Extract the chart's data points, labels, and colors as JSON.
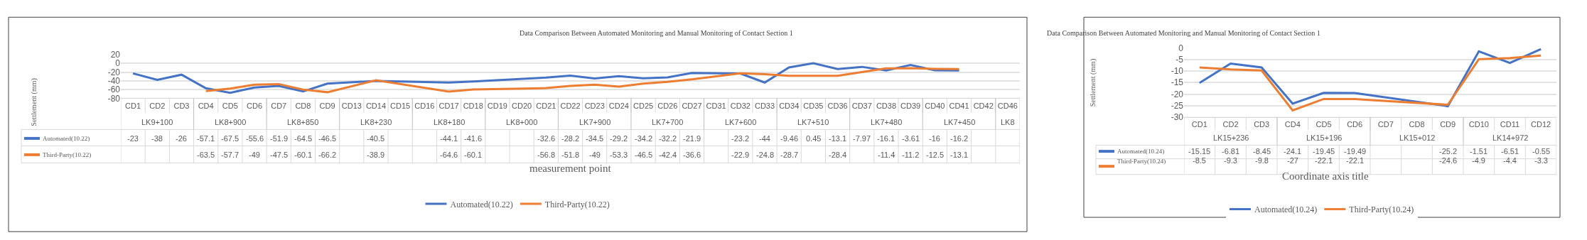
{
  "chart_data": [
    {
      "type": "line",
      "title": "Data Comparison Between Automated Monitoring and Manual Monitoring of Contact Section 1",
      "xlabel": "measurement point",
      "ylabel": "Settlement (mm)",
      "categories": [
        "CD1",
        "CD2",
        "CD3",
        "CD4",
        "CD5",
        "CD6",
        "CD7",
        "CD8",
        "CD9",
        "CD13",
        "CD14",
        "CD15",
        "CD16",
        "CD17",
        "CD18",
        "CD19",
        "CD20",
        "CD21",
        "CD22",
        "CD23",
        "CD24",
        "CD25",
        "CD26",
        "CD27",
        "CD31",
        "CD32",
        "CD33",
        "CD34",
        "CD35",
        "CD36",
        "CD37",
        "CD38",
        "CD39",
        "CD40",
        "CD41",
        "CD42",
        "CD46"
      ],
      "series": [
        {
          "name": "Automated(10.22)",
          "color": "#4472c4",
          "values": [
            -23,
            -38,
            -26,
            -57.1,
            -67.5,
            -55.6,
            -51.9,
            -64.5,
            -46.5,
            null,
            -40.5,
            null,
            null,
            -44.1,
            -41.6,
            null,
            null,
            -32.6,
            -28.2,
            -34.5,
            -29.2,
            -34.2,
            -32.2,
            -21.9,
            null,
            -23.2,
            -44,
            -9.46,
            0.45,
            -13.1,
            -7.97,
            -16.1,
            -3.61,
            -16,
            -16.2,
            null,
            null
          ]
        },
        {
          "name": "Third-Party(10.22)",
          "color": "#ed7d31",
          "values": [
            null,
            null,
            null,
            -63.5,
            -57.7,
            -49,
            -47.5,
            -60.1,
            -66.2,
            null,
            -38.9,
            null,
            null,
            -64.6,
            -60.1,
            null,
            null,
            -56.8,
            -51.8,
            -49,
            -53.3,
            -46.5,
            -42.4,
            -36.6,
            null,
            -22.9,
            -24.8,
            -28.7,
            null,
            -28.4,
            null,
            -11.4,
            -11.2,
            -12.5,
            -13.1,
            null,
            null
          ]
        }
      ],
      "annotations": [
        "LK9+100",
        "LK8+900",
        "LK8+850",
        "LK8+230",
        "LK8+180",
        "LK8+000",
        "LK7+900",
        "LK7+700",
        "LK7+600",
        "LK7+510",
        "LK7+480",
        "LK7+450",
        "LK8"
      ],
      "ylim": [
        -80,
        20
      ],
      "yticks": [
        20,
        0,
        -20,
        -40,
        -60,
        -80
      ],
      "grid": "y",
      "legend": "bottom",
      "data_labels": true
    },
    {
      "type": "line",
      "title": "Data Comparison Between Automated Monitoring and Manual Monitoring of Contact Section 1",
      "xlabel": "Coordinate axis title",
      "ylabel": "Settlement (mm)",
      "categories": [
        "CD1",
        "CD2",
        "CD3",
        "CD4",
        "CD5",
        "CD6",
        "CD7",
        "CD8",
        "CD9",
        "CD10",
        "CD11",
        "CD12"
      ],
      "series": [
        {
          "name": "Automated(10.24)",
          "color": "#4472c4",
          "values": [
            -15.15,
            -6.81,
            -8.45,
            -24.1,
            -19.45,
            -19.49,
            null,
            null,
            -25.2,
            -1.51,
            -6.51,
            -0.55
          ]
        },
        {
          "name": "Third-Party(10.24)",
          "color": "#ed7d31",
          "values": [
            -8.5,
            -9.3,
            -9.8,
            -27,
            -22.1,
            -22.1,
            null,
            null,
            -24.6,
            -4.9,
            -4.4,
            -3.3
          ]
        }
      ],
      "annotations": [
        "LK15+236",
        "LK15+196",
        "LK15+012",
        "LK14+972"
      ],
      "ylim": [
        -30,
        0
      ],
      "yticks": [
        0,
        -5,
        -10,
        -15,
        -20,
        -25,
        -30
      ],
      "grid": "y",
      "legend": "bottom",
      "data_labels": true
    }
  ]
}
